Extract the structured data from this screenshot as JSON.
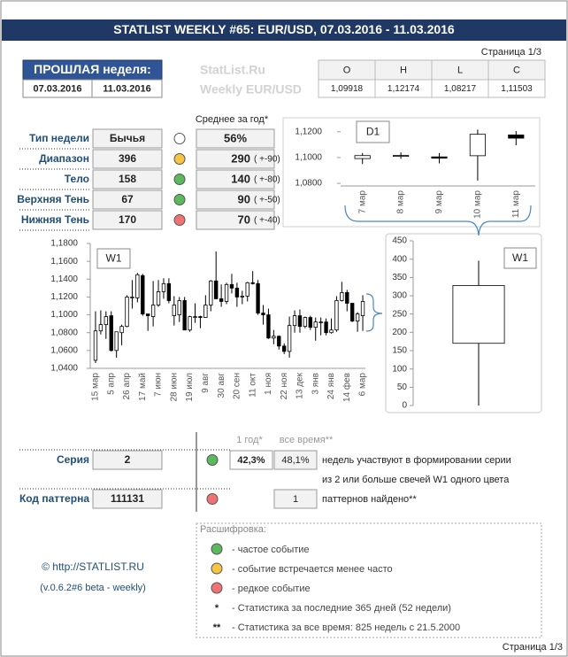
{
  "title": "STATLIST WEEKLY #65: EUR/USD, 07.03.2016 - 11.03.2016",
  "page_label": "Страница 1/3",
  "prev_week": {
    "label": "ПРОШЛАЯ неделя:",
    "start": "07.03.2016",
    "end": "11.03.2016"
  },
  "watermark": [
    "StatList.Ru",
    "Weekly EUR/USD"
  ],
  "ohlc": {
    "headers": [
      "O",
      "H",
      "L",
      "C"
    ],
    "values": [
      "1,09918",
      "1,12174",
      "1,08217",
      "1,11503"
    ]
  },
  "stats": {
    "avg_header": "Среднее за год*",
    "rows": [
      {
        "label": "Тип недели",
        "value": "Бычья",
        "status": "#ffffff",
        "avg": "56%"
      },
      {
        "label": "Диапазон",
        "value": "396",
        "status": "#f6c343",
        "avg": "290",
        "delta": "( +-90)"
      },
      {
        "label": "Тело",
        "value": "158",
        "status": "#5cb85c",
        "avg": "140",
        "delta": "( +-80)"
      },
      {
        "label": "Верхняя Тень",
        "value": "67",
        "status": "#5cb85c",
        "avg": "90",
        "delta": "( +-50)"
      },
      {
        "label": "Нижняя Тень",
        "value": "170",
        "status": "#f07272",
        "avg": "70",
        "delta": "( +-40)"
      }
    ]
  },
  "series_stats": {
    "col_headers": [
      "1 год*",
      "все время**"
    ],
    "rows": [
      {
        "label": "Серия",
        "value": "2",
        "status": "#5cb85c",
        "year": "42,3%",
        "all": "48,1%",
        "notes": [
          "недель участвуют в формировании серии",
          "из 2 или больше свечей W1 одного цвета"
        ]
      },
      {
        "label": "Код паттерна",
        "value": "111131",
        "status": "#f07272",
        "all": "1",
        "notes": [
          "паттернов найдено**"
        ]
      }
    ]
  },
  "legend": {
    "title": "Расшифровка:",
    "items": [
      {
        "color": "#5cb85c",
        "text": "- частое событие"
      },
      {
        "color": "#f6c343",
        "text": "- событие встречается менее часто"
      },
      {
        "color": "#f07272",
        "text": "- редкое событие"
      },
      {
        "symbol": "*",
        "text": "- Статистика за последние 365 дней (52 недели)"
      },
      {
        "symbol": "**",
        "text": "- Статистика за все время: 825 недель с 21.5.2000"
      }
    ]
  },
  "footer": {
    "link": "© http://STATLIST.RU",
    "version": "(v.0.6.2#6 beta - weekly)"
  },
  "chart_data": [
    {
      "type": "candlestick",
      "label": "D1",
      "categories": [
        "7 мар",
        "8 мар",
        "9 мар",
        "10 мар",
        "11 мар"
      ],
      "open": [
        1.0992,
        1.1012,
        1.1005,
        1.1014,
        1.1175
      ],
      "high": [
        1.1035,
        1.104,
        1.1035,
        1.1217,
        1.1205
      ],
      "low": [
        1.095,
        1.099,
        1.0955,
        1.0822,
        1.1095
      ],
      "close": [
        1.1015,
        1.1016,
        1.0995,
        1.118,
        1.115
      ],
      "up_color": "#ffffff",
      "down_color": "#000000",
      "ylim": [
        1.078,
        1.126
      ],
      "yticks": [
        {
          "value": 1.08,
          "label": "1,0800"
        },
        {
          "value": 1.1,
          "label": "1,1000"
        },
        {
          "value": 1.12,
          "label": "1,1200"
        }
      ],
      "grid": false
    },
    {
      "type": "candlestick",
      "label": "W1",
      "categories": [
        "15 мар",
        null,
        null,
        "5 апр",
        null,
        null,
        "26 апр",
        null,
        null,
        "17 май",
        null,
        null,
        "7 июн",
        null,
        null,
        "28 июн",
        null,
        null,
        "19 июл",
        null,
        null,
        "9 авг",
        null,
        null,
        "30 авг",
        null,
        null,
        "20 сен",
        null,
        null,
        "11 окт",
        null,
        null,
        "1 ноя",
        null,
        null,
        "22 ноя",
        null,
        null,
        "13 дек",
        null,
        null,
        "3 янв",
        null,
        null,
        "24 янв",
        null,
        null,
        "14 фев",
        null,
        null,
        "6 мар"
      ],
      "open": [
        1.049,
        1.082,
        1.089,
        1.099,
        1.06,
        1.08,
        1.087,
        1.12,
        1.119,
        1.144,
        1.101,
        1.098,
        1.111,
        1.126,
        1.135,
        1.099,
        1.1,
        1.116,
        1.083,
        1.098,
        1.098,
        1.097,
        1.111,
        1.138,
        1.118,
        1.115,
        1.134,
        1.13,
        1.12,
        1.121,
        1.136,
        1.135,
        1.102,
        1.1,
        1.074,
        1.076,
        1.065,
        1.059,
        1.088,
        1.099,
        1.087,
        1.097,
        1.086,
        1.092,
        1.092,
        1.08,
        1.083,
        1.116,
        1.125,
        1.113,
        1.093,
        1.099
      ],
      "high": [
        1.104,
        1.105,
        1.104,
        1.104,
        1.081,
        1.089,
        1.122,
        1.139,
        1.147,
        1.146,
        1.101,
        1.138,
        1.139,
        1.141,
        1.141,
        1.121,
        1.12,
        1.12,
        1.099,
        1.113,
        1.099,
        1.122,
        1.139,
        1.171,
        1.134,
        1.136,
        1.146,
        1.136,
        1.127,
        1.137,
        1.149,
        1.139,
        1.111,
        1.107,
        1.083,
        1.077,
        1.068,
        1.098,
        1.105,
        1.106,
        1.098,
        1.099,
        1.097,
        1.097,
        1.096,
        1.096,
        1.121,
        1.137,
        1.128,
        1.113,
        1.103,
        1.122
      ],
      "low": [
        1.046,
        1.078,
        1.073,
        1.059,
        1.052,
        1.066,
        1.086,
        1.107,
        1.114,
        1.099,
        1.082,
        1.087,
        1.109,
        1.118,
        1.113,
        1.088,
        1.092,
        1.083,
        1.081,
        1.091,
        1.085,
        1.097,
        1.104,
        1.118,
        1.109,
        1.112,
        1.124,
        1.109,
        1.112,
        1.115,
        1.134,
        1.1,
        1.089,
        1.073,
        1.067,
        1.061,
        1.056,
        1.052,
        1.08,
        1.08,
        1.085,
        1.083,
        1.071,
        1.077,
        1.077,
        1.079,
        1.081,
        1.115,
        1.104,
        1.092,
        1.081,
        1.082
      ],
      "close": [
        1.082,
        1.089,
        1.098,
        1.06,
        1.081,
        1.087,
        1.12,
        1.12,
        1.145,
        1.101,
        1.099,
        1.111,
        1.126,
        1.135,
        1.116,
        1.111,
        1.116,
        1.083,
        1.098,
        1.098,
        1.097,
        1.111,
        1.138,
        1.118,
        1.115,
        1.134,
        1.13,
        1.12,
        1.121,
        1.136,
        1.135,
        1.102,
        1.1,
        1.074,
        1.076,
        1.065,
        1.059,
        1.088,
        1.099,
        1.087,
        1.097,
        1.086,
        1.092,
        1.092,
        1.08,
        1.083,
        1.116,
        1.125,
        1.113,
        1.093,
        1.101,
        1.115
      ],
      "up_color": "#ffffff",
      "down_color": "#000000",
      "ylim": [
        1.04,
        1.18
      ],
      "yticks": [
        {
          "value": 1.04,
          "label": "1,0400"
        },
        {
          "value": 1.06,
          "label": "1,0600"
        },
        {
          "value": 1.08,
          "label": "1,0800"
        },
        {
          "value": 1.1,
          "label": "1,1000"
        },
        {
          "value": 1.12,
          "label": "1,1200"
        },
        {
          "value": 1.14,
          "label": "1,1400"
        },
        {
          "value": 1.16,
          "label": "1,1600"
        },
        {
          "value": 1.18,
          "label": "1,1800"
        }
      ],
      "grid": false
    },
    {
      "type": "candlestick",
      "label": "W1",
      "categories": [
        null
      ],
      "open": [
        170
      ],
      "high": [
        396
      ],
      "low": [
        0
      ],
      "close": [
        328
      ],
      "up_color": "#ffffff",
      "down_color": "#000000",
      "ylim": [
        0,
        450
      ],
      "yticks": [
        0,
        50,
        100,
        150,
        200,
        250,
        300,
        350,
        400,
        450
      ],
      "grid": false
    }
  ]
}
